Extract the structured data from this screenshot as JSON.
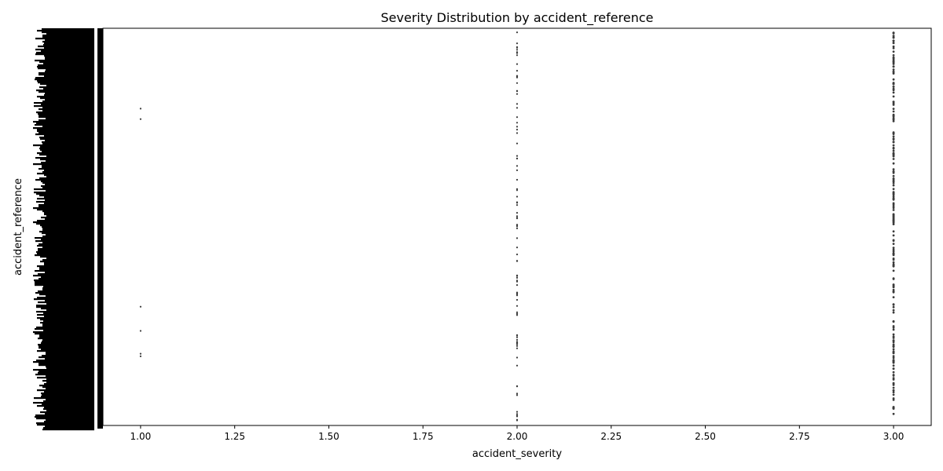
{
  "chart_data": {
    "type": "scatter",
    "title": "Severity Distribution by accident_reference",
    "xlabel": "accident_severity",
    "ylabel": "accident_reference",
    "xlim": [
      0.9,
      3.1
    ],
    "x_ticks": [
      "1.00",
      "1.25",
      "1.50",
      "1.75",
      "2.00",
      "2.25",
      "2.50",
      "2.75",
      "3.00"
    ],
    "x_tick_values": [
      1.0,
      1.25,
      1.5,
      1.75,
      2.0,
      2.25,
      2.5,
      2.75,
      3.0
    ],
    "y_tick_labels_legible": false,
    "grid": false,
    "legend": "none",
    "marker_color": "#3a3a3a",
    "severity_levels": [
      1,
      2,
      3
    ],
    "note_counts": {
      "1": 6,
      "2": 90,
      "3": 200
    }
  }
}
